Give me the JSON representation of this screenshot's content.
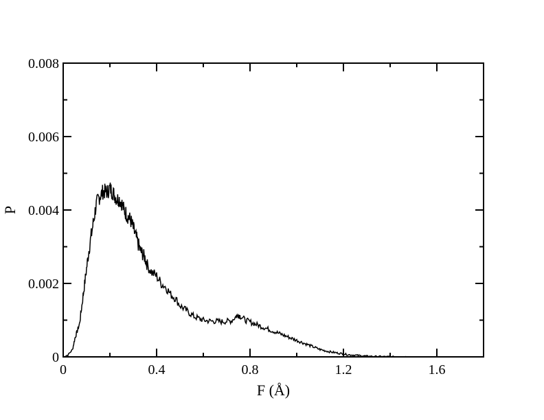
{
  "chart_data": {
    "type": "line",
    "title": "",
    "xlabel": "F (Å)",
    "ylabel": "P",
    "xlim": [
      0,
      1.8
    ],
    "ylim": [
      0,
      0.008
    ],
    "x_ticks": [
      0,
      0.4,
      0.8,
      1.2,
      1.6
    ],
    "x_tick_labels": [
      "0",
      "0.4",
      "0.8",
      "1.2",
      "1.6"
    ],
    "y_ticks": [
      0,
      0.002,
      0.004,
      0.006,
      0.008
    ],
    "y_tick_labels": [
      "0",
      "0.002",
      "0.004",
      "0.006",
      "0.008"
    ],
    "grid": false,
    "legend": "none",
    "series": [
      {
        "color": "#000000",
        "x": [
          0.0,
          0.02,
          0.04,
          0.05,
          0.06,
          0.07,
          0.08,
          0.09,
          0.1,
          0.11,
          0.12,
          0.13,
          0.14,
          0.15,
          0.16,
          0.17,
          0.18,
          0.19,
          0.2,
          0.21,
          0.22,
          0.23,
          0.24,
          0.25,
          0.26,
          0.27,
          0.28,
          0.29,
          0.3,
          0.31,
          0.32,
          0.33,
          0.34,
          0.35,
          0.36,
          0.38,
          0.4,
          0.42,
          0.44,
          0.46,
          0.48,
          0.5,
          0.52,
          0.54,
          0.56,
          0.58,
          0.6,
          0.62,
          0.64,
          0.66,
          0.68,
          0.7,
          0.72,
          0.74,
          0.75,
          0.76,
          0.78,
          0.8,
          0.82,
          0.84,
          0.86,
          0.88,
          0.9,
          0.92,
          0.94,
          0.96,
          0.98,
          1.0,
          1.02,
          1.04,
          1.06,
          1.08,
          1.1,
          1.12,
          1.14,
          1.16,
          1.18,
          1.2,
          1.22,
          1.24,
          1.26,
          1.28,
          1.3,
          1.32,
          1.34,
          1.36,
          1.38,
          1.4,
          1.42,
          1.44,
          1.46,
          1.48,
          1.5
        ],
        "y": [
          0.0,
          5e-05,
          0.0002,
          0.0005,
          0.0007,
          0.0009,
          0.0014,
          0.0019,
          0.0024,
          0.0029,
          0.0033,
          0.0037,
          0.0041,
          0.0043,
          0.0044,
          0.0045,
          0.0045,
          0.0045,
          0.0046,
          0.0045,
          0.0044,
          0.0043,
          0.0043,
          0.0042,
          0.004,
          0.0039,
          0.0038,
          0.0037,
          0.0035,
          0.0033,
          0.0031,
          0.0029,
          0.0028,
          0.0027,
          0.0025,
          0.0023,
          0.0022,
          0.002,
          0.0019,
          0.0017,
          0.0016,
          0.0014,
          0.0013,
          0.0012,
          0.0011,
          0.00105,
          0.001,
          0.00098,
          0.00097,
          0.00097,
          0.00096,
          0.00097,
          0.00098,
          0.0011,
          0.00115,
          0.0011,
          0.001,
          0.00095,
          0.0009,
          0.00085,
          0.0008,
          0.00075,
          0.0007,
          0.00065,
          0.0006,
          0.00055,
          0.0005,
          0.00045,
          0.0004,
          0.00035,
          0.0003,
          0.00025,
          0.0002,
          0.00017,
          0.00014,
          0.00012,
          0.0001,
          8e-05,
          6e-05,
          5e-05,
          4e-05,
          3e-05,
          2e-05,
          1.5e-05,
          1e-05,
          1e-05,
          5e-06,
          5e-06,
          0.0,
          0.0,
          0.0,
          0.0,
          0.0
        ]
      }
    ]
  }
}
